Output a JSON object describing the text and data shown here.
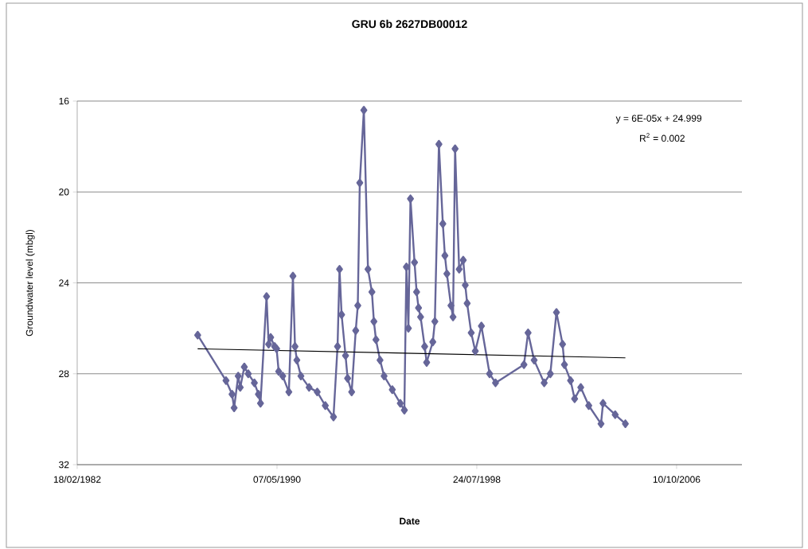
{
  "chart_data": {
    "type": "line",
    "title": "GRU 6b 2627DB00012",
    "xlabel": "Date",
    "ylabel": "Groundwater level (mbgl)",
    "xlim": [
      "1982-02-18",
      "2009-06-17"
    ],
    "xticks": [
      {
        "value": "1982-02-18",
        "label": "18/02/1982"
      },
      {
        "value": "1990-05-07",
        "label": "07/05/1990"
      },
      {
        "value": "1998-07-24",
        "label": "24/07/1998"
      },
      {
        "value": "2006-10-10",
        "label": "10/10/2006"
      }
    ],
    "ylim": [
      32,
      16
    ],
    "yticks": [
      16,
      20,
      24,
      28,
      32
    ],
    "grid": "y",
    "marker": "diamond",
    "line_style": "solid",
    "annotations": [
      "y = 6E-05x + 24.999",
      "R$^{2}$ = 0.002"
    ],
    "series": [
      {
        "color": "#666699",
        "x": [
          "1987-02",
          "1988-04",
          "1988-07",
          "1988-08",
          "1988-10",
          "1988-11",
          "1989-01",
          "1989-03",
          "1989-06",
          "1989-08",
          "1989-09",
          "1989-12",
          "1990-01",
          "1990-02",
          "1990-04",
          "1990-05",
          "1990-06",
          "1990-08",
          "1990-11",
          "1991-01",
          "1991-02",
          "1991-03",
          "1991-05",
          "1991-09",
          "1992-01",
          "1992-05",
          "1992-09",
          "1992-11",
          "1992-12",
          "1993-01",
          "1993-03",
          "1993-04",
          "1993-06",
          "1993-08",
          "1993-09",
          "1993-10",
          "1993-12",
          "1994-02",
          "1994-04",
          "1994-05",
          "1994-06",
          "1994-08",
          "1994-10",
          "1995-02",
          "1995-06",
          "1995-08",
          "1995-09",
          "1995-10",
          "1995-11",
          "1996-01",
          "1996-02",
          "1996-03",
          "1996-04",
          "1996-06",
          "1996-07",
          "1996-10",
          "1996-11",
          "1997-01",
          "1997-03",
          "1997-04",
          "1997-05",
          "1997-07",
          "1997-08",
          "1997-09",
          "1997-11",
          "1998-01",
          "1998-02",
          "1998-03",
          "1998-05",
          "1998-07",
          "1998-10",
          "1999-02",
          "1999-05",
          "2000-07",
          "2000-09",
          "2000-12",
          "2001-05",
          "2001-08",
          "2001-11",
          "2002-02",
          "2002-03",
          "2002-06",
          "2002-08",
          "2002-11",
          "2003-03",
          "2003-09",
          "2003-10",
          "2004-04",
          "2004-09"
        ],
        "values": [
          26.3,
          28.3,
          28.9,
          29.5,
          28.1,
          28.6,
          27.7,
          28.0,
          28.4,
          28.9,
          29.3,
          24.6,
          26.7,
          26.4,
          26.8,
          26.9,
          27.9,
          28.1,
          28.8,
          23.7,
          26.8,
          27.4,
          28.1,
          28.6,
          28.8,
          29.4,
          29.9,
          26.8,
          23.4,
          25.4,
          27.2,
          28.2,
          28.8,
          26.1,
          25.0,
          19.6,
          16.4,
          23.4,
          24.4,
          25.7,
          26.5,
          27.4,
          28.1,
          28.7,
          29.3,
          29.6,
          23.3,
          26.0,
          20.3,
          23.1,
          24.4,
          25.1,
          25.5,
          26.8,
          27.5,
          26.6,
          25.7,
          17.9,
          21.4,
          22.8,
          23.6,
          25.0,
          25.5,
          18.1,
          23.4,
          23.0,
          24.1,
          24.9,
          26.2,
          27.0,
          25.9,
          28.0,
          28.4,
          27.6,
          26.2,
          27.4,
          28.4,
          28.0,
          25.3,
          26.7,
          27.6,
          28.3,
          29.1,
          28.6,
          29.4,
          30.2,
          29.3,
          29.8,
          30.2
        ]
      },
      {
        "type": "line",
        "color": "#000000",
        "marker": "none",
        "x": [
          "1987-02",
          "2004-09"
        ],
        "values": [
          26.9,
          27.3
        ]
      }
    ]
  }
}
